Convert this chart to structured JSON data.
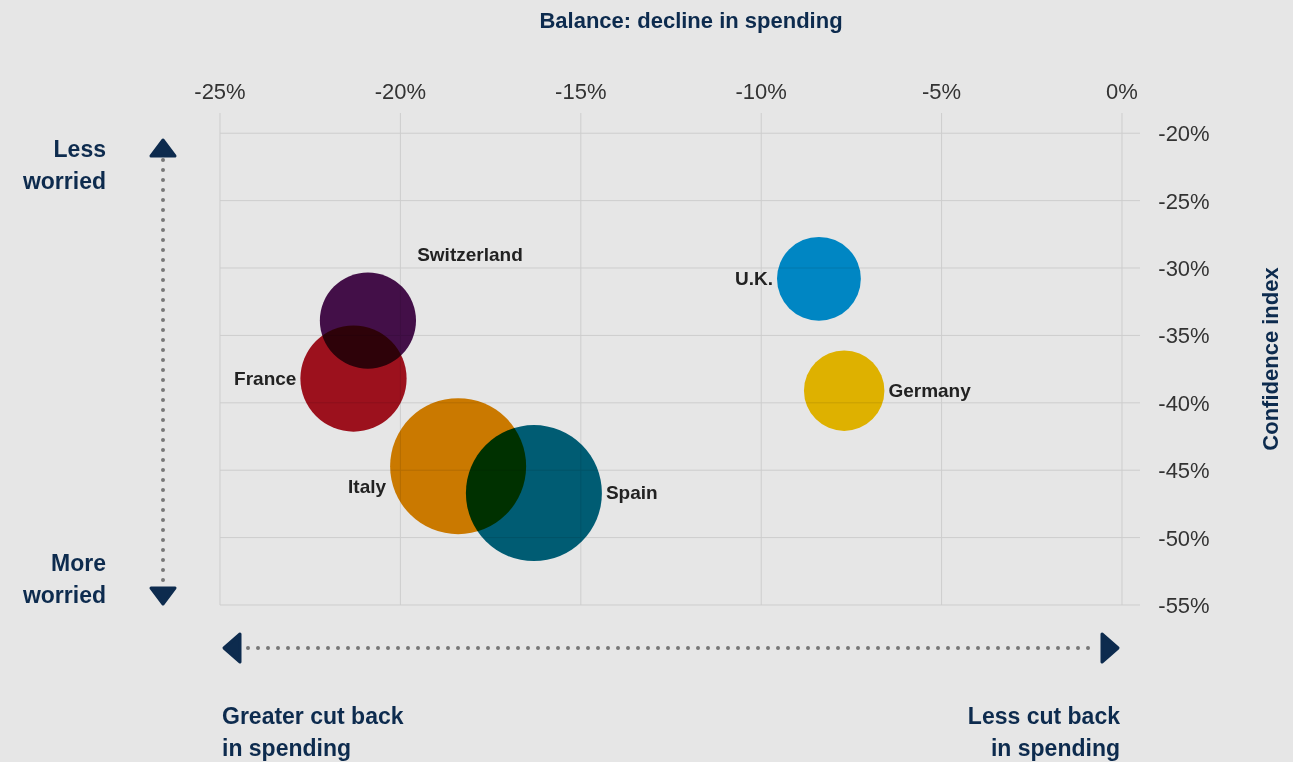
{
  "chart_data": {
    "type": "bubble",
    "xlabel": "Balance: decline in spending",
    "ylabel": "Confidence index",
    "xlim": [
      -25,
      0
    ],
    "ylim": [
      -55,
      -18.5
    ],
    "xticks": [
      {
        "value": -25,
        "label": "-25%"
      },
      {
        "value": -20,
        "label": "-20%"
      },
      {
        "value": -15,
        "label": "-15%"
      },
      {
        "value": -10,
        "label": "-10%"
      },
      {
        "value": -5,
        "label": "-5%"
      },
      {
        "value": 0,
        "label": "0%"
      }
    ],
    "yticks": [
      {
        "value": -20,
        "label": "-20%"
      },
      {
        "value": -25,
        "label": "-25%"
      },
      {
        "value": -30,
        "label": "-30%"
      },
      {
        "value": -35,
        "label": "-35%"
      },
      {
        "value": -40,
        "label": "-40%"
      },
      {
        "value": -45,
        "label": "-45%"
      },
      {
        "value": -50,
        "label": "-50%"
      },
      {
        "value": -55,
        "label": "-55%"
      }
    ],
    "grid": true,
    "marker": "circle",
    "series": [
      {
        "name": "Switzerland",
        "color": "#4a1050",
        "x": [
          -20.9
        ],
        "values": [
          -33.9
        ],
        "sizes": [
          0.5
        ]
      },
      {
        "name": "France",
        "color": "#ad1220",
        "x": [
          -21.3
        ],
        "values": [
          -38.2
        ],
        "sizes": [
          0.61
        ]
      },
      {
        "name": "Italy",
        "color": "#e08600",
        "x": [
          -18.4
        ],
        "values": [
          -44.7
        ],
        "sizes": [
          1
        ]
      },
      {
        "name": "Spain",
        "color": "#006680",
        "x": [
          -16.3
        ],
        "values": [
          -46.7
        ],
        "sizes": [
          1
        ]
      },
      {
        "name": "U.K.",
        "color": "#0095d8",
        "x": [
          -8.4
        ],
        "values": [
          -30.8
        ],
        "sizes": [
          0.38
        ]
      },
      {
        "name": "Germany",
        "color": "#f7c500",
        "x": [
          -7.7
        ],
        "values": [
          -39.1
        ],
        "sizes": [
          0.35
        ]
      }
    ],
    "annotations": [
      "Less\nworried",
      "More\nworried",
      "Greater cut back\nin spending",
      "Less cut back\nin spending"
    ]
  }
}
